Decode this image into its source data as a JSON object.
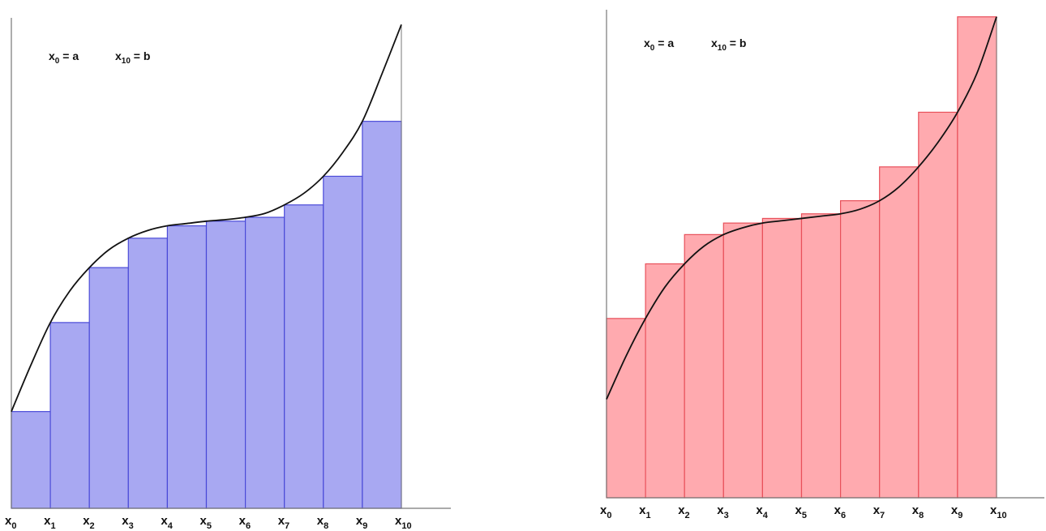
{
  "chart_data": [
    {
      "type": "bar",
      "subtype": "left-riemann-sum",
      "x_labels": [
        {
          "base": "x",
          "sub": "0"
        },
        {
          "base": "x",
          "sub": "1"
        },
        {
          "base": "x",
          "sub": "2"
        },
        {
          "base": "x",
          "sub": "3"
        },
        {
          "base": "x",
          "sub": "4"
        },
        {
          "base": "x",
          "sub": "5"
        },
        {
          "base": "x",
          "sub": "6"
        },
        {
          "base": "x",
          "sub": "7"
        },
        {
          "base": "x",
          "sub": "8"
        },
        {
          "base": "x",
          "sub": "9"
        },
        {
          "base": "x",
          "sub": "10"
        }
      ],
      "annotations": [
        {
          "base": "x",
          "sub": "0",
          "rest": " = a"
        },
        {
          "base": "x",
          "sub": "10",
          "rest": " = b"
        }
      ],
      "values": [
        1.25,
        2.4,
        3.11,
        3.49,
        3.65,
        3.71,
        3.76,
        3.92,
        4.29,
        5.0
      ],
      "curve": [
        [
          0.0,
          1.25
        ],
        [
          0.5,
          1.85
        ],
        [
          1.0,
          2.4
        ],
        [
          1.5,
          2.81
        ],
        [
          2.0,
          3.11
        ],
        [
          2.5,
          3.34
        ],
        [
          3.0,
          3.49
        ],
        [
          3.5,
          3.59
        ],
        [
          4.0,
          3.65
        ],
        [
          4.5,
          3.68
        ],
        [
          5.0,
          3.71
        ],
        [
          5.5,
          3.73
        ],
        [
          6.0,
          3.76
        ],
        [
          6.5,
          3.81
        ],
        [
          7.0,
          3.92
        ],
        [
          7.5,
          4.07
        ],
        [
          8.0,
          4.29
        ],
        [
          8.5,
          4.6
        ],
        [
          9.0,
          5.0
        ],
        [
          9.5,
          5.61
        ],
        [
          10.0,
          6.25
        ]
      ],
      "xlim": [
        0,
        10
      ],
      "ylim": [
        0,
        6.4
      ],
      "bar_color": "#a8a8f2",
      "bar_edge_color": "#4b4bd8",
      "curve_color": "#111111",
      "axis_color": "#777777"
    },
    {
      "type": "bar",
      "subtype": "right-riemann-sum",
      "x_labels": [
        {
          "base": "x",
          "sub": "0"
        },
        {
          "base": "x",
          "sub": "1"
        },
        {
          "base": "x",
          "sub": "2"
        },
        {
          "base": "x",
          "sub": "3"
        },
        {
          "base": "x",
          "sub": "4"
        },
        {
          "base": "x",
          "sub": "5"
        },
        {
          "base": "x",
          "sub": "6"
        },
        {
          "base": "x",
          "sub": "7"
        },
        {
          "base": "x",
          "sub": "8"
        },
        {
          "base": "x",
          "sub": "9"
        },
        {
          "base": "x",
          "sub": "10"
        }
      ],
      "annotations": [
        {
          "base": "x",
          "sub": "0",
          "rest": " = a"
        },
        {
          "base": "x",
          "sub": "10",
          "rest": " = b"
        }
      ],
      "values": [
        2.33,
        3.04,
        3.42,
        3.57,
        3.63,
        3.69,
        3.86,
        4.3,
        5.01,
        6.25
      ],
      "curve": [
        [
          0.0,
          1.28
        ],
        [
          0.5,
          1.84
        ],
        [
          1.0,
          2.33
        ],
        [
          1.5,
          2.74
        ],
        [
          2.0,
          3.04
        ],
        [
          2.5,
          3.27
        ],
        [
          3.0,
          3.42
        ],
        [
          3.5,
          3.51
        ],
        [
          4.0,
          3.57
        ],
        [
          4.5,
          3.6
        ],
        [
          5.0,
          3.63
        ],
        [
          5.5,
          3.66
        ],
        [
          6.0,
          3.69
        ],
        [
          6.5,
          3.75
        ],
        [
          7.0,
          3.86
        ],
        [
          7.5,
          4.04
        ],
        [
          8.0,
          4.3
        ],
        [
          8.5,
          4.62
        ],
        [
          9.0,
          5.01
        ],
        [
          9.5,
          5.52
        ],
        [
          10.0,
          6.25
        ]
      ],
      "xlim": [
        0,
        10
      ],
      "ylim": [
        0,
        6.3
      ],
      "bar_color": "#ffaaaf",
      "bar_edge_color": "#e8505a",
      "curve_color": "#111111",
      "axis_color": "#777777"
    }
  ]
}
